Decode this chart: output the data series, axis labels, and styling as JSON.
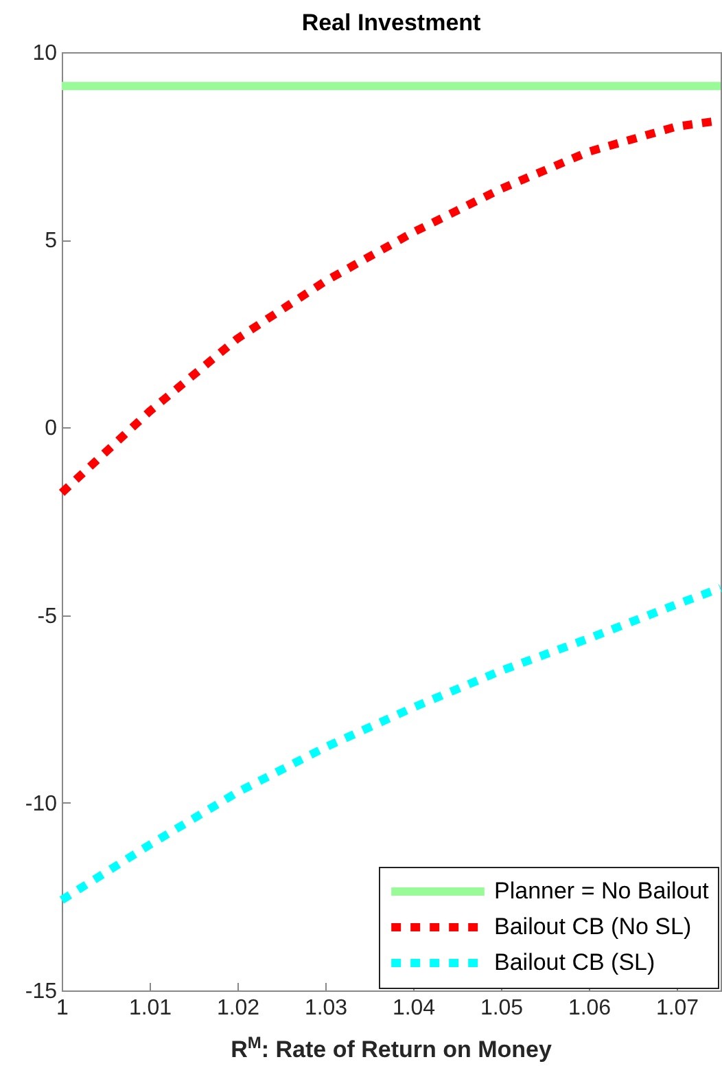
{
  "chart_data": {
    "type": "line",
    "title": "Real Investment",
    "xlabel": "R$^{M}$: Rate of Return on Money",
    "x": [
      1,
      1.01,
      1.02,
      1.03,
      1.04,
      1.05,
      1.06,
      1.07,
      1.075
    ],
    "series": [
      {
        "name": "Planner = No Bailout",
        "color": "#98fb98",
        "line_style": "solid",
        "x": [
          1,
          1.075
        ],
        "values": [
          9.1,
          9.1
        ]
      },
      {
        "name": "Bailout CB (No SL)",
        "color": "#ff0000",
        "line_style": "dotted",
        "values": [
          -1.74,
          0.43,
          2.37,
          3.9,
          5.2,
          6.36,
          7.35,
          8.02,
          8.18
        ]
      },
      {
        "name": "Bailout CB (SL)",
        "color": "#00ffff",
        "line_style": "dotted",
        "values": [
          -12.59,
          -11.12,
          -9.72,
          -8.52,
          -7.46,
          -6.48,
          -5.62,
          -4.71,
          -4.28
        ]
      }
    ],
    "xlim": [
      1,
      1.075
    ],
    "xticks": [
      1,
      1.01,
      1.02,
      1.03,
      1.04,
      1.05,
      1.06,
      1.07
    ],
    "ylim": [
      -15,
      10
    ],
    "yticks": [
      -15,
      -10,
      -5,
      0,
      5,
      10
    ],
    "grid": false,
    "legend": "bottom right",
    "marker": "none"
  }
}
